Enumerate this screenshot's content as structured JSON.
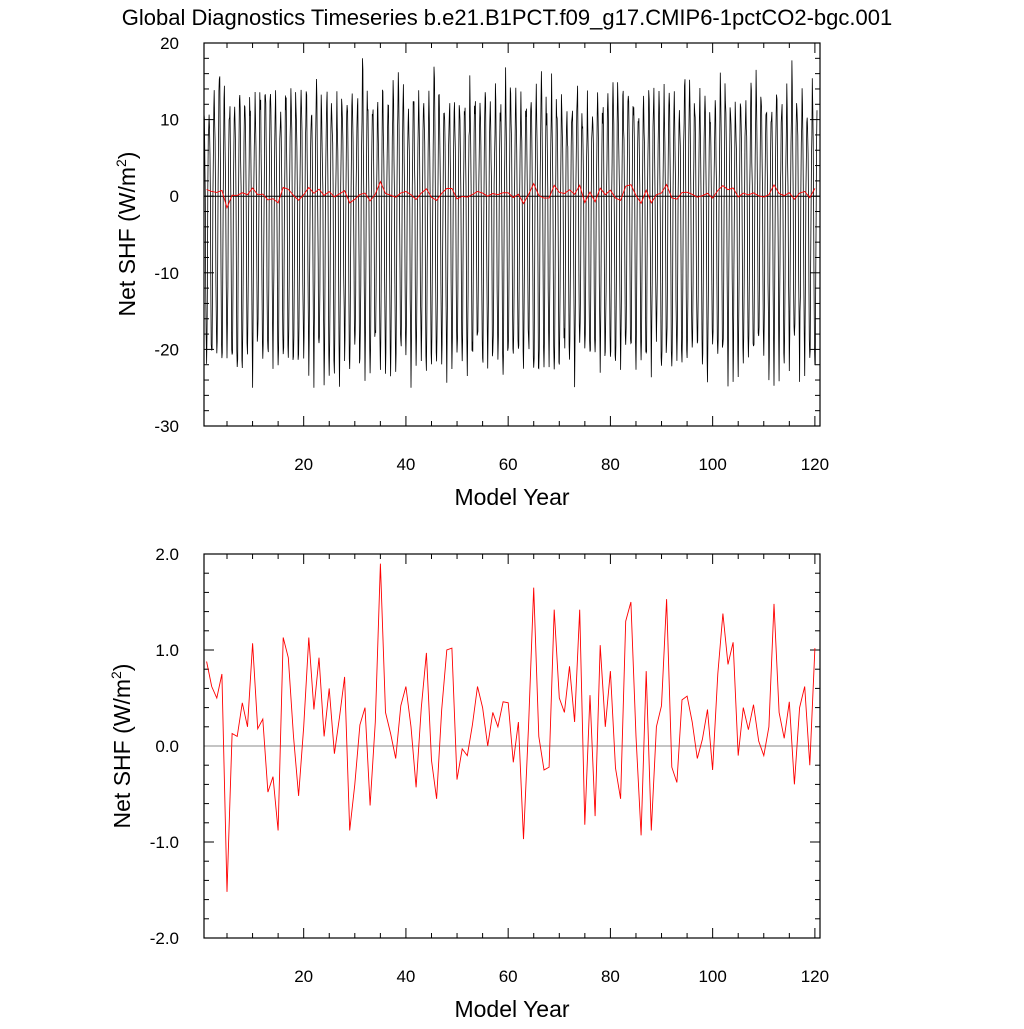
{
  "title": "Global Diagnostics Timeseries b.e21.B1PCT.f09_g17.CMIP6-1pctCO2-bgc.001",
  "colors": {
    "monthly": "#000000",
    "annual": "#ff0000",
    "zero_line": "#000000",
    "zero_line_bottom": "#888888"
  },
  "chart_data": [
    {
      "type": "line",
      "xlabel": "Model Year",
      "ylabel_main": "Net SHF (W/m",
      "ylabel_sup": "2",
      "ylabel_close": ")",
      "xlim": [
        0.5,
        121
      ],
      "ylim": [
        -30,
        20
      ],
      "x_ticks": [
        20,
        40,
        60,
        80,
        100,
        120
      ],
      "x_tick_labels": [
        "20",
        "40",
        "60",
        "80",
        "100",
        "120"
      ],
      "y_ticks": [
        -30,
        -20,
        -10,
        0,
        10,
        20
      ],
      "y_tick_labels": [
        "-30",
        "-20",
        "-10",
        "0",
        "10",
        "20"
      ],
      "series": [
        {
          "role": "monthly",
          "x_start": 0.5,
          "cycle_years": 1,
          "annual_max_approx": 12,
          "annual_min_approx": -22,
          "overall_max": 18,
          "overall_min": -25
        },
        {
          "role": "annual"
        }
      ]
    },
    {
      "type": "line",
      "xlabel": "Model Year",
      "ylabel_main": "Net SHF (W/m",
      "ylabel_sup": "2",
      "ylabel_close": ")",
      "xlim": [
        0.5,
        121
      ],
      "ylim": [
        -2.0,
        2.0
      ],
      "x_ticks": [
        20,
        40,
        60,
        80,
        100,
        120
      ],
      "x_tick_labels": [
        "20",
        "40",
        "60",
        "80",
        "100",
        "120"
      ],
      "y_ticks": [
        -2,
        -1,
        0,
        1,
        2
      ],
      "y_tick_labels": [
        "-2.0",
        "-1.0",
        "0.0",
        "1.0",
        "2.0"
      ],
      "series": [
        {
          "role": "annual",
          "x_start": 1,
          "values": [
            0.88,
            0.62,
            0.5,
            0.75,
            -1.52,
            0.13,
            0.1,
            0.45,
            0.2,
            1.07,
            0.18,
            0.28,
            -0.48,
            -0.32,
            -0.88,
            1.13,
            0.92,
            0.1,
            -0.52,
            0.2,
            1.13,
            0.38,
            0.92,
            0.1,
            0.6,
            -0.08,
            0.3,
            0.72,
            -0.88,
            -0.4,
            0.22,
            0.4,
            -0.62,
            0.25,
            1.9,
            0.35,
            0.13,
            -0.13,
            0.42,
            0.62,
            0.2,
            -0.43,
            0.4,
            0.97,
            -0.15,
            -0.55,
            0.38,
            1.0,
            1.02,
            -0.35,
            -0.03,
            -0.1,
            0.22,
            0.62,
            0.4,
            0.0,
            0.35,
            0.2,
            0.46,
            0.45,
            -0.17,
            0.25,
            -0.97,
            0.22,
            1.65,
            0.1,
            -0.25,
            -0.22,
            1.42,
            0.5,
            0.35,
            0.83,
            0.25,
            1.42,
            -0.82,
            0.53,
            -0.73,
            1.05,
            0.2,
            0.78,
            -0.23,
            -0.55,
            1.3,
            1.5,
            0.1,
            -0.93,
            0.78,
            -0.88,
            0.2,
            0.42,
            1.53,
            -0.22,
            -0.38,
            0.48,
            0.52,
            0.25,
            -0.13,
            0.07,
            0.38,
            -0.25,
            0.75,
            1.38,
            0.85,
            1.08,
            -0.1,
            0.4,
            0.17,
            0.43,
            0.05,
            -0.1,
            0.2,
            1.48,
            0.35,
            0.08,
            0.46,
            -0.4,
            0.4,
            0.62,
            -0.2,
            1.02
          ]
        }
      ]
    }
  ]
}
